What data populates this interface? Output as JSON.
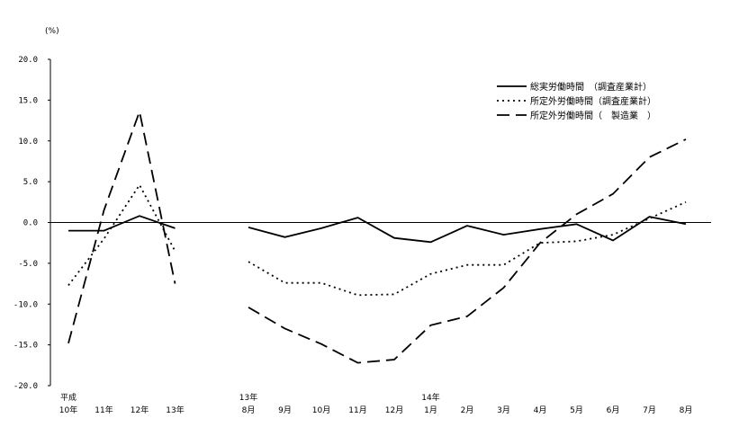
{
  "chart_data": {
    "type": "line",
    "unit_label": "(%)",
    "ylim": [
      -20,
      20
    ],
    "yticks": [
      "20.0",
      "15.0",
      "10.0",
      "5.0",
      "0.0",
      "-5.0",
      "-10.0",
      "-15.0",
      "-20.0"
    ],
    "annual": {
      "categories": [
        {
          "top": "平成",
          "bottom": "10年"
        },
        {
          "top": "",
          "bottom": "11年"
        },
        {
          "top": "",
          "bottom": "12年"
        },
        {
          "top": "",
          "bottom": "13年"
        }
      ]
    },
    "monthly": {
      "categories": [
        {
          "top": "13年",
          "bottom": "8月"
        },
        {
          "top": "",
          "bottom": "9月"
        },
        {
          "top": "",
          "bottom": "10月"
        },
        {
          "top": "",
          "bottom": "11月"
        },
        {
          "top": "",
          "bottom": "12月"
        },
        {
          "top": "14年",
          "bottom": "1月"
        },
        {
          "top": "",
          "bottom": "2月"
        },
        {
          "top": "",
          "bottom": "3月"
        },
        {
          "top": "",
          "bottom": "4月"
        },
        {
          "top": "",
          "bottom": "5月"
        },
        {
          "top": "",
          "bottom": "6月"
        },
        {
          "top": "",
          "bottom": "7月"
        },
        {
          "top": "",
          "bottom": "8月"
        }
      ]
    },
    "series": [
      {
        "name": "総実労働時間　（調査産業計）",
        "dash": "solid",
        "annual_values": [
          -1.0,
          -1.0,
          0.8,
          -0.7
        ],
        "monthly_values": [
          -0.6,
          -1.8,
          -0.7,
          0.6,
          -1.9,
          -2.4,
          -0.4,
          -1.5,
          -0.8,
          -0.2,
          -2.2,
          0.7,
          -0.2
        ]
      },
      {
        "name": "所定外労働時間（調査産業計）",
        "dash": "dotted",
        "annual_values": [
          -7.7,
          -2.0,
          4.6,
          -3.5
        ],
        "monthly_values": [
          -4.8,
          -7.4,
          -7.4,
          -8.9,
          -8.8,
          -6.3,
          -5.2,
          -5.2,
          -2.5,
          -2.3,
          -1.5,
          0.5,
          2.5
        ]
      },
      {
        "name": "所定外労働時間（　製造業　）",
        "dash": "dashed",
        "annual_values": [
          -14.8,
          1.5,
          13.6,
          -7.5
        ],
        "monthly_values": [
          -10.4,
          -13.0,
          -14.9,
          -17.2,
          -16.8,
          -12.6,
          -11.5,
          -8.0,
          -2.5,
          1.0,
          3.5,
          8.0,
          10.2
        ]
      }
    ]
  }
}
